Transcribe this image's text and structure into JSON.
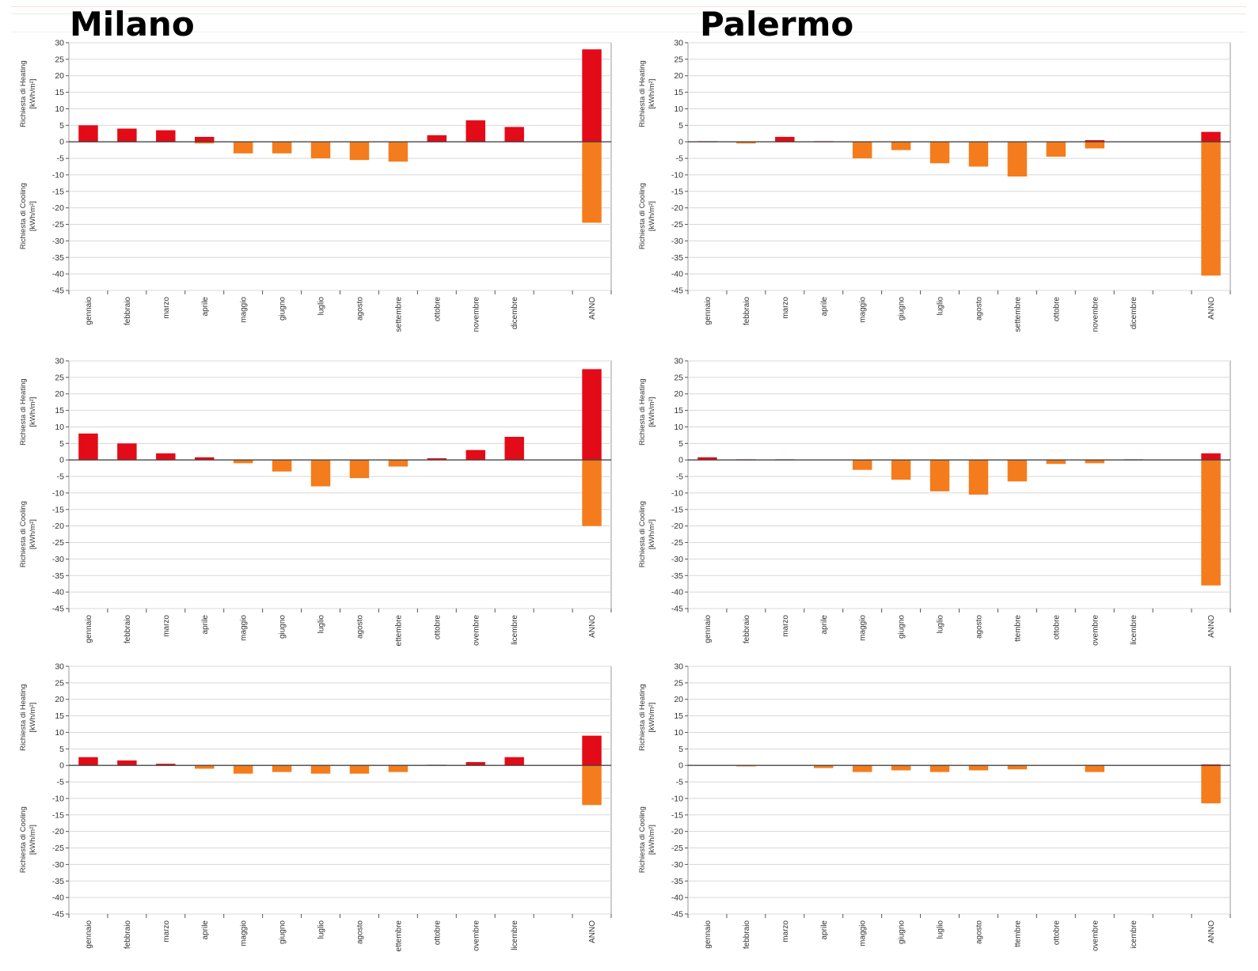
{
  "titles": {
    "left": "Milano",
    "right": "Palermo"
  },
  "colors": {
    "heating": "#e30b17",
    "cooling": "#f47c1c",
    "grid": "#d8d8d8",
    "axis": "#555555"
  },
  "common": {
    "categories": [
      "gennaio",
      "febbraio",
      "marzo",
      "aprile",
      "maggio",
      "giugno",
      "luglio",
      "agosto",
      "settembre",
      "ottobre",
      "novembre",
      "dicembre",
      "ANNO"
    ],
    "ylabel_heating_line1": "Richiesta di Heating",
    "ylabel_heating_line2": "[kWh/m²]",
    "ylabel_cooling_line1": "Richiesta di Cooling",
    "ylabel_cooling_line2": "[kWh/m²]",
    "yticks": [
      30,
      25,
      20,
      15,
      10,
      5,
      0,
      -5,
      -10,
      -15,
      -20,
      -25,
      -30,
      -35,
      -40,
      -45
    ],
    "ylim": [
      -45,
      30
    ]
  },
  "chart_data": [
    {
      "type": "bar",
      "city": "Milano",
      "row": 1,
      "categories": [
        "gennaio",
        "febbraio",
        "marzo",
        "aprile",
        "maggio",
        "giugno",
        "luglio",
        "agosto",
        "settembre",
        "ottobre",
        "novembre",
        "dicembre",
        "ANNO"
      ],
      "tick_labels": [
        "gennaio",
        "febbraio",
        "marzo",
        "aprile",
        "maggio",
        "giugno",
        "luglio",
        "agosto",
        "settembre",
        "ottobre",
        "novembre",
        "dicembre",
        "ANNO"
      ],
      "series": [
        {
          "key": "heating",
          "values": [
            5,
            4,
            3.5,
            1.5,
            0,
            0,
            0,
            0,
            0,
            2,
            6.5,
            4.5,
            28
          ]
        },
        {
          "key": "cooling",
          "values": [
            0,
            0,
            0,
            -0.5,
            -3.5,
            -3.5,
            -5,
            -5.5,
            -6,
            0,
            0,
            0,
            -24.5
          ]
        }
      ],
      "ylim": [
        -45,
        30
      ],
      "grid": true
    },
    {
      "type": "bar",
      "city": "Palermo",
      "row": 1,
      "categories": [
        "gennaio",
        "febbraio",
        "marzo",
        "aprile",
        "maggio",
        "giugno",
        "luglio",
        "agosto",
        "settembre",
        "ottobre",
        "novembre",
        "dicembre",
        "ANNO"
      ],
      "tick_labels": [
        "gennaio",
        "febbraio",
        "marzo",
        "aprile",
        "maggio",
        "giugno",
        "luglio",
        "agosto",
        "settembre",
        "ottobre",
        "novembre",
        "dicembre",
        "ANNO"
      ],
      "series": [
        {
          "key": "heating",
          "values": [
            0.2,
            0,
            1.5,
            0.2,
            0,
            0,
            0,
            0,
            0,
            0,
            0.5,
            0,
            3
          ]
        },
        {
          "key": "cooling",
          "values": [
            0,
            -0.5,
            0,
            0,
            -5,
            -2.5,
            -6.5,
            -7.5,
            -10.5,
            -4.5,
            -2,
            0,
            -40.5
          ]
        }
      ],
      "ylim": [
        -45,
        30
      ],
      "grid": true
    },
    {
      "type": "bar",
      "city": "Milano",
      "row": 2,
      "categories": [
        "gennaio",
        "febbraio",
        "marzo",
        "aprile",
        "maggio",
        "giugno",
        "luglio",
        "agosto",
        "settembre",
        "ottobre",
        "novembre",
        "dicembre",
        "ANNO"
      ],
      "tick_labels": [
        "gennaio",
        "febbraio",
        "marzo",
        "aprile",
        "maggio",
        "giugno",
        "luglio",
        "agosto",
        "ettembre",
        "ottobre",
        "ovembre",
        "licembre",
        "ANNO"
      ],
      "series": [
        {
          "key": "heating",
          "values": [
            8,
            5,
            2,
            0.8,
            0,
            0,
            0,
            0,
            0,
            0.5,
            3,
            7,
            27.5
          ]
        },
        {
          "key": "cooling",
          "values": [
            0,
            0,
            0,
            0,
            -1,
            -3.5,
            -8,
            -5.5,
            -2,
            0,
            0,
            0,
            -20
          ]
        }
      ],
      "ylim": [
        -45,
        30
      ],
      "grid": true
    },
    {
      "type": "bar",
      "city": "Palermo",
      "row": 2,
      "categories": [
        "gennaio",
        "febbraio",
        "marzo",
        "aprile",
        "maggio",
        "giugno",
        "luglio",
        "agosto",
        "settembre",
        "ottobre",
        "novembre",
        "dicembre",
        "ANNO"
      ],
      "tick_labels": [
        "gennaio",
        "febbraio",
        "marzo",
        "aprile",
        "maggio",
        "giugno",
        "luglio",
        "agosto",
        "ttembre",
        "ottobre",
        "ovembre",
        "licembre",
        "ANNO"
      ],
      "series": [
        {
          "key": "heating",
          "values": [
            0.8,
            0.2,
            0.2,
            0,
            0,
            0,
            0,
            0,
            0,
            0,
            0,
            0.2,
            2
          ]
        },
        {
          "key": "cooling",
          "values": [
            0,
            0,
            0,
            0,
            -3,
            -6,
            -9.5,
            -10.5,
            -6.5,
            -1.2,
            -1,
            0,
            -38
          ]
        }
      ],
      "ylim": [
        -45,
        30
      ],
      "grid": true
    },
    {
      "type": "bar",
      "city": "Milano",
      "row": 3,
      "categories": [
        "gennaio",
        "febbraio",
        "marzo",
        "aprile",
        "maggio",
        "giugno",
        "luglio",
        "agosto",
        "settembre",
        "ottobre",
        "novembre",
        "dicembre",
        "ANNO"
      ],
      "tick_labels": [
        "gennaio",
        "febbraio",
        "marzo",
        "aprile",
        "maggio",
        "giugno",
        "luglio",
        "agosto",
        "ettembre",
        "ottobre",
        "ovembre",
        "licembre",
        "ANNO"
      ],
      "series": [
        {
          "key": "heating",
          "values": [
            2.5,
            1.5,
            0.5,
            0,
            0,
            0,
            0,
            0,
            0,
            0.2,
            1,
            2.5,
            9
          ]
        },
        {
          "key": "cooling",
          "values": [
            0,
            0,
            0,
            -1,
            -2.5,
            -2,
            -2.5,
            -2.5,
            -2,
            0,
            0,
            0,
            -12
          ]
        }
      ],
      "ylim": [
        -45,
        30
      ],
      "grid": true
    },
    {
      "type": "bar",
      "city": "Palermo",
      "row": 3,
      "categories": [
        "gennaio",
        "febbraio",
        "marzo",
        "aprile",
        "maggio",
        "giugno",
        "luglio",
        "agosto",
        "settembre",
        "ottobre",
        "novembre",
        "dicembre",
        "ANNO"
      ],
      "tick_labels": [
        "gennaio",
        "febbraio",
        "marzo",
        "aprile",
        "maggio",
        "giugno",
        "luglio",
        "agosto",
        "ttembre",
        "ottobre",
        "ovembre",
        "icembre",
        "ANNO"
      ],
      "series": [
        {
          "key": "heating",
          "values": [
            0,
            0,
            0,
            0,
            0,
            0,
            0,
            0,
            0,
            0,
            0,
            0,
            0.3
          ]
        },
        {
          "key": "cooling",
          "values": [
            0,
            -0.3,
            0,
            -0.8,
            -2,
            -1.5,
            -2,
            -1.5,
            -1.2,
            0,
            -2,
            0,
            -11.5
          ]
        }
      ],
      "ylim": [
        -45,
        30
      ],
      "grid": true
    }
  ]
}
